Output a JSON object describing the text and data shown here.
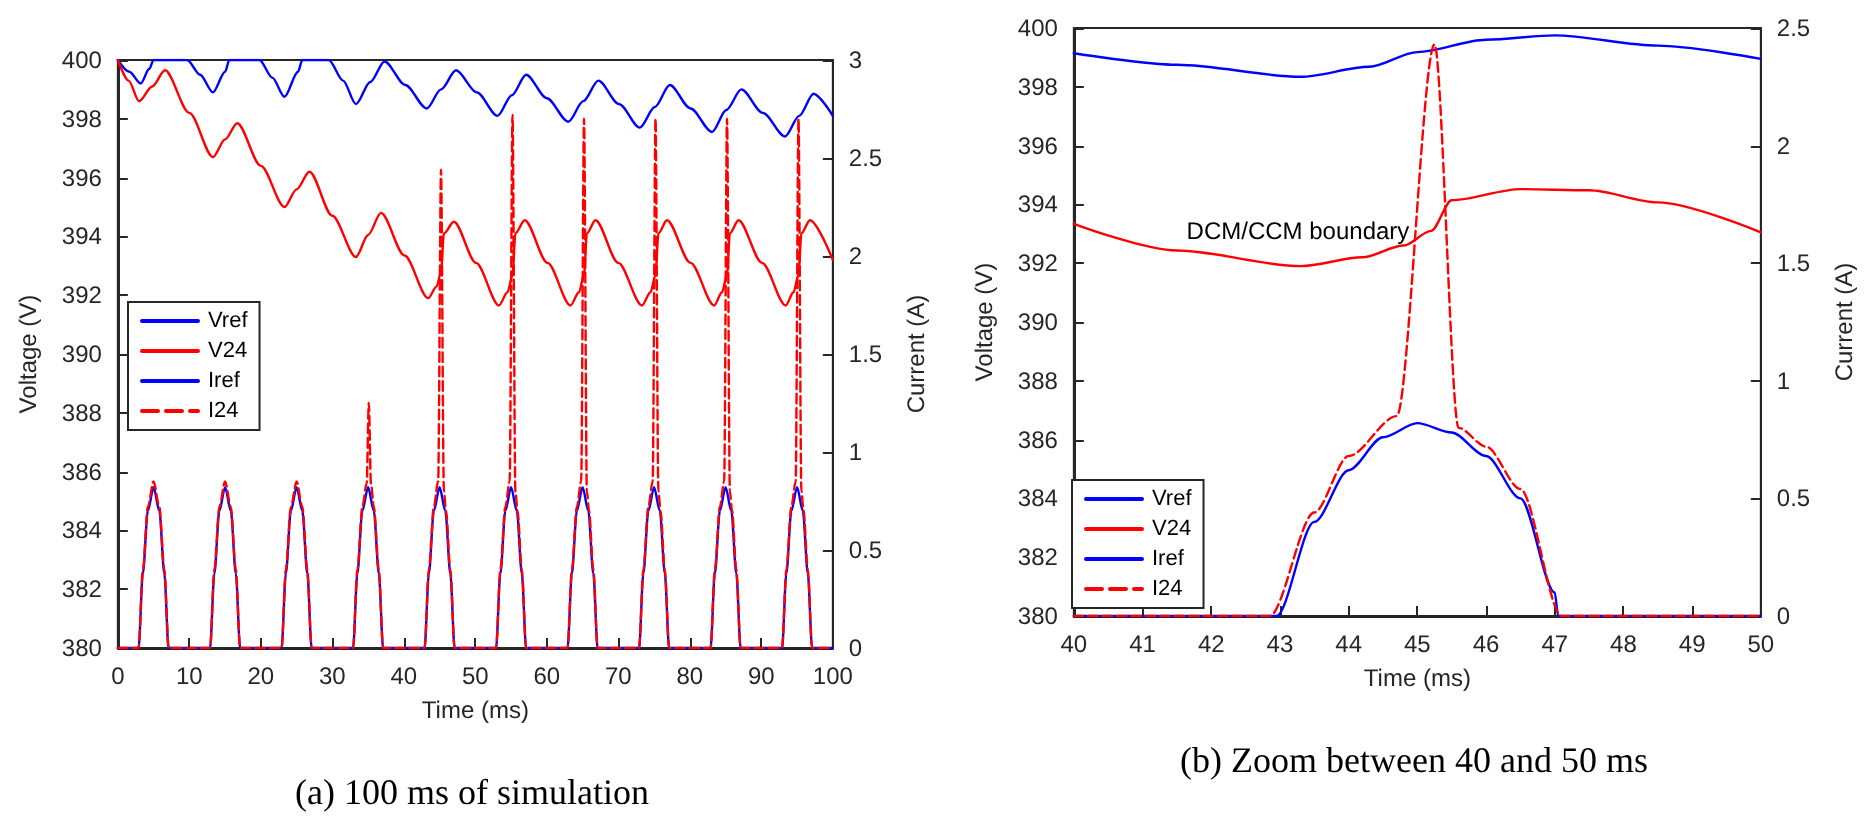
{
  "chart_data": [
    {
      "type": "line",
      "title": "(a) 100 ms of simulation",
      "xlabel": "Time (ms)",
      "ylabel": "Voltage (V)",
      "y2label": "Current (A)",
      "xlim": [
        0,
        100
      ],
      "xticks": [
        0,
        10,
        20,
        30,
        40,
        50,
        60,
        70,
        80,
        90,
        100
      ],
      "ylim": [
        380,
        400
      ],
      "yticks": [
        380,
        382,
        384,
        386,
        388,
        390,
        392,
        394,
        396,
        398,
        400
      ],
      "y2lim": [
        0,
        3
      ],
      "y2ticks": [
        0,
        0.5,
        1,
        1.5,
        2,
        2.5,
        3
      ],
      "grid": false,
      "legend": "left",
      "marker": "none",
      "series": [
        {
          "name": "Vref",
          "color": "#0000ff",
          "line_style": "solid",
          "x": [
            0,
            1.6,
            3.2,
            4.4,
            5.0,
            9.7,
            11.5,
            13.3,
            15.0,
            15.6,
            19.8,
            21.6,
            23.3,
            25.2,
            25.8,
            29.5,
            31.5,
            33.3,
            35.3,
            37.3,
            40.2,
            43.2,
            45.2,
            47.3,
            50.2,
            53.1,
            55.1,
            57.1,
            60.0,
            63.0,
            65.1,
            67.2,
            70.1,
            73.0,
            75.1,
            77.2,
            80.1,
            83.1,
            85.1,
            87.2,
            90.2,
            93.3,
            95.3,
            97.3,
            100
          ],
          "values": [
            400,
            399.6,
            399.2,
            399.7,
            400,
            400,
            399.5,
            398.9,
            399.6,
            400,
            400,
            399.4,
            398.75,
            399.6,
            400,
            400,
            399.3,
            398.5,
            399.25,
            399.95,
            399.15,
            398.35,
            399.0,
            399.65,
            398.9,
            398.1,
            398.8,
            399.5,
            398.7,
            397.9,
            398.6,
            399.3,
            398.5,
            397.7,
            398.4,
            399.15,
            398.35,
            397.55,
            398.3,
            399.0,
            398.2,
            397.4,
            398.1,
            398.85,
            398.1
          ]
        },
        {
          "name": "V24",
          "color": "#ff0000",
          "line_style": "solid",
          "x": [
            0,
            1.5,
            2.97,
            4.8,
            6.6,
            10.0,
            13.3,
            15.0,
            16.7,
            20.0,
            23.3,
            25.0,
            26.8,
            30.0,
            33.3,
            35.0,
            36.8,
            40.1,
            43.4,
            44.6,
            45.2,
            45.6,
            47.0,
            50.1,
            53.3,
            54.5,
            55.2,
            55.6,
            56.9,
            60.1,
            63.3,
            64.5,
            65.2,
            65.6,
            66.8,
            70.0,
            73.3,
            74.5,
            75.2,
            75.6,
            76.8,
            80.1,
            83.4,
            84.5,
            85.2,
            85.6,
            86.8,
            90.1,
            93.4,
            94.5,
            95.2,
            95.6,
            96.8,
            100
          ],
          "values": [
            400,
            399.3,
            398.6,
            399.1,
            399.65,
            398.2,
            396.7,
            397.3,
            397.85,
            396.4,
            395.0,
            395.6,
            396.2,
            394.7,
            393.3,
            394.05,
            394.8,
            393.35,
            391.9,
            392.3,
            392.8,
            394.1,
            394.5,
            393.1,
            391.65,
            392.1,
            392.7,
            394.1,
            394.55,
            393.1,
            391.65,
            392.1,
            392.7,
            394.1,
            394.55,
            393.1,
            391.65,
            392.1,
            392.7,
            394.1,
            394.55,
            393.1,
            391.65,
            392.1,
            392.7,
            394.1,
            394.55,
            393.1,
            391.65,
            392.1,
            392.7,
            394.1,
            394.55,
            393.2
          ]
        },
        {
          "name": "Iref",
          "color": "#0000ff",
          "line_style": "solid",
          "axis": "y2",
          "x": [
            0,
            2.9,
            3.5,
            4.2,
            5,
            5.8,
            6.5,
            7.1,
            12.9,
            13.5,
            14.2,
            15,
            15.8,
            16.5,
            17.1,
            22.9,
            23.5,
            24.2,
            25,
            25.8,
            26.5,
            27.1,
            32.9,
            33.5,
            34.2,
            35,
            35.8,
            36.5,
            37.1,
            42.9,
            43.5,
            44.2,
            45,
            45.8,
            46.5,
            47.1,
            52.9,
            53.5,
            54.2,
            55,
            55.8,
            56.5,
            57.1,
            62.9,
            63.5,
            64.2,
            65,
            65.8,
            66.5,
            67.1,
            72.9,
            73.5,
            74.2,
            75,
            75.8,
            76.5,
            77.1,
            82.9,
            83.5,
            84.2,
            85,
            85.8,
            86.5,
            87.1,
            92.9,
            93.5,
            94.2,
            95,
            95.8,
            96.5,
            97.1,
            100
          ],
          "values": [
            0,
            0,
            0.38,
            0.7,
            0.82,
            0.7,
            0.38,
            0,
            0,
            0.38,
            0.7,
            0.82,
            0.7,
            0.38,
            0,
            0,
            0.38,
            0.7,
            0.82,
            0.7,
            0.38,
            0,
            0,
            0.38,
            0.7,
            0.82,
            0.7,
            0.38,
            0,
            0,
            0.38,
            0.7,
            0.82,
            0.7,
            0.38,
            0,
            0,
            0.38,
            0.7,
            0.82,
            0.7,
            0.38,
            0,
            0,
            0.38,
            0.7,
            0.82,
            0.7,
            0.38,
            0,
            0,
            0.38,
            0.7,
            0.82,
            0.7,
            0.38,
            0,
            0,
            0.38,
            0.7,
            0.82,
            0.7,
            0.38,
            0,
            0,
            0.38,
            0.7,
            0.82,
            0.7,
            0.38,
            0,
            0
          ]
        },
        {
          "name": "I24",
          "color": "#ff0000",
          "line_style": "dashed",
          "axis": "y2",
          "x": [
            0,
            2.9,
            3.5,
            4.2,
            5,
            5.8,
            6.5,
            7.1,
            12.9,
            13.5,
            14.2,
            15,
            15.8,
            16.5,
            17.1,
            22.9,
            23.5,
            24.2,
            25,
            25.8,
            26.5,
            27.1,
            32.9,
            33.5,
            34.2,
            34.8,
            35.1,
            35.4,
            35.8,
            36.5,
            37.1,
            42.9,
            43.5,
            44.2,
            44.8,
            45.2,
            45.6,
            45.9,
            46.5,
            47.1,
            52.9,
            53.5,
            54.2,
            54.8,
            55.2,
            55.6,
            55.9,
            56.5,
            57.1,
            62.9,
            63.5,
            64.2,
            64.8,
            65.2,
            65.6,
            65.9,
            66.5,
            67.1,
            72.9,
            73.5,
            74.2,
            74.8,
            75.2,
            75.6,
            75.9,
            76.5,
            77.1,
            82.9,
            83.5,
            84.2,
            84.8,
            85.2,
            85.6,
            85.9,
            86.5,
            87.1,
            92.9,
            93.5,
            94.2,
            94.8,
            95.2,
            95.6,
            95.9,
            96.5,
            97.1,
            100
          ],
          "values": [
            0,
            0,
            0.4,
            0.72,
            0.85,
            0.72,
            0.4,
            0,
            0,
            0.4,
            0.72,
            0.85,
            0.72,
            0.4,
            0,
            0,
            0.4,
            0.72,
            0.85,
            0.72,
            0.4,
            0,
            0,
            0.4,
            0.72,
            0.84,
            1.25,
            0.84,
            0.72,
            0.4,
            0,
            0,
            0.4,
            0.72,
            0.85,
            2.44,
            0.8,
            0.7,
            0.4,
            0,
            0,
            0.4,
            0.72,
            0.85,
            2.72,
            0.8,
            0.7,
            0.4,
            0,
            0,
            0.4,
            0.72,
            0.85,
            2.7,
            0.8,
            0.7,
            0.4,
            0,
            0,
            0.4,
            0.72,
            0.85,
            2.7,
            0.8,
            0.7,
            0.4,
            0,
            0,
            0.4,
            0.72,
            0.85,
            2.7,
            0.8,
            0.7,
            0.4,
            0,
            0,
            0.4,
            0.72,
            0.85,
            2.7,
            0.8,
            0.7,
            0.4,
            0,
            0
          ]
        }
      ]
    },
    {
      "type": "line",
      "title": "(b) Zoom between 40 and 50 ms",
      "xlabel": "Time (ms)",
      "ylabel": "Voltage (V)",
      "y2label": "Current (A)",
      "xlim": [
        40,
        50
      ],
      "xticks": [
        40,
        41,
        42,
        43,
        44,
        45,
        46,
        47,
        48,
        49,
        50
      ],
      "ylim": [
        380,
        400
      ],
      "yticks": [
        380,
        382,
        384,
        386,
        388,
        390,
        392,
        394,
        396,
        398,
        400
      ],
      "y2lim": [
        0,
        2.5
      ],
      "y2ticks": [
        0,
        0.5,
        1,
        1.5,
        2,
        2.5
      ],
      "grid": false,
      "legend": "bottom left",
      "marker": "none",
      "annotations": [
        {
          "text": "DCM/CCM boundary",
          "x": 45,
          "y": 392.7
        }
      ],
      "series": [
        {
          "name": "Vref",
          "color": "#0000ff",
          "line_style": "solid",
          "x": [
            40,
            41.5,
            43.3,
            44.3,
            45,
            46,
            47,
            48.5,
            50
          ],
          "values": [
            399.14,
            398.75,
            398.34,
            398.68,
            399.18,
            399.6,
            399.75,
            399.4,
            398.95
          ]
        },
        {
          "name": "V24",
          "color": "#ff0000",
          "line_style": "solid",
          "x": [
            40,
            41.5,
            43.3,
            44.2,
            44.8,
            45.2,
            45.5,
            46.5,
            47.5,
            48.5,
            50
          ],
          "values": [
            393.34,
            392.43,
            391.9,
            392.2,
            392.6,
            393.1,
            394.14,
            394.52,
            394.48,
            394.07,
            393.05
          ]
        },
        {
          "name": "Iref",
          "color": "#0000ff",
          "line_style": "solid",
          "axis": "y2",
          "x": [
            40,
            42.95,
            43.5,
            44,
            44.5,
            45,
            45.5,
            46,
            46.5,
            47,
            47.05,
            50
          ],
          "values": [
            0,
            0,
            0.4,
            0.62,
            0.76,
            0.82,
            0.78,
            0.68,
            0.5,
            0.1,
            0,
            0
          ]
        },
        {
          "name": "I24",
          "color": "#ff0000",
          "line_style": "dashed",
          "axis": "y2",
          "x": [
            40,
            42.85,
            43.5,
            44,
            44.7,
            45.25,
            45.6,
            46,
            46.5,
            47.1,
            50
          ],
          "values": [
            0,
            0,
            0.44,
            0.68,
            0.85,
            2.43,
            0.8,
            0.72,
            0.54,
            0,
            0
          ]
        }
      ]
    }
  ]
}
